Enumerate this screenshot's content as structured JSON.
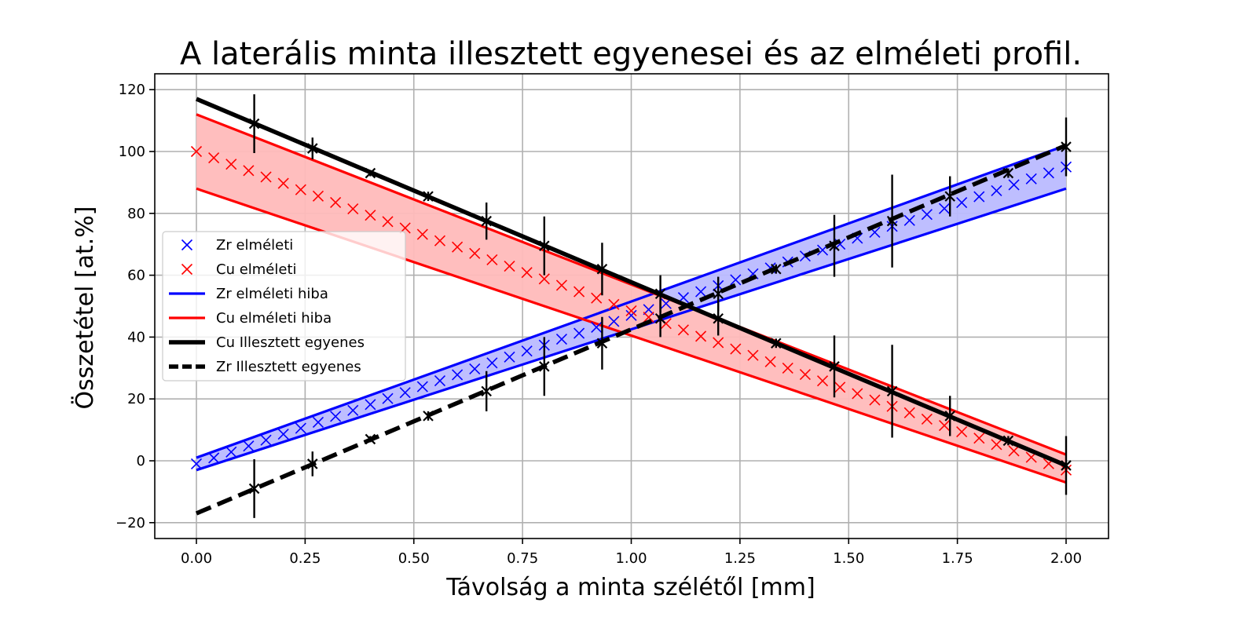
{
  "chart_data": {
    "type": "line",
    "title": "A laterális minta illesztett egyenesei és az elméleti profil.",
    "xlabel": "Távolság a minta szélétől [mm]",
    "ylabel": "Összetétel [at.%]",
    "xlim": [
      -0.1,
      2.1
    ],
    "ylim": [
      -25,
      125
    ],
    "xticks": [
      0.0,
      0.25,
      0.5,
      0.75,
      1.0,
      1.25,
      1.5,
      1.75,
      2.0
    ],
    "xtick_labels": [
      "0.00",
      "0.25",
      "0.50",
      "0.75",
      "1.00",
      "1.25",
      "1.50",
      "1.75",
      "2.00"
    ],
    "yticks": [
      -20,
      0,
      20,
      40,
      60,
      80,
      100,
      120
    ],
    "ytick_labels": [
      "−20",
      "0",
      "20",
      "40",
      "60",
      "80",
      "100",
      "120"
    ],
    "grid": true,
    "legend_position": "center-left",
    "theory": {
      "x_start": 0.0,
      "x_step": 0.04,
      "count": 51,
      "zr_start": -1,
      "zr_end": 95,
      "cu_start": 100,
      "cu_end": -3
    },
    "bands": [
      {
        "name": "Zr elméleti hiba",
        "color": "#0000ff",
        "fill": "#bbbbff",
        "upper": [
          [
            0.0,
            1
          ],
          [
            2.0,
            102
          ]
        ],
        "lower": [
          [
            0.0,
            -3
          ],
          [
            2.0,
            88
          ]
        ]
      },
      {
        "name": "Cu elméleti hiba",
        "color": "#ff0000",
        "fill": "#ffbbbb",
        "upper": [
          [
            0.0,
            112
          ],
          [
            2.0,
            2
          ]
        ],
        "lower": [
          [
            0.0,
            88
          ],
          [
            2.0,
            -7
          ]
        ]
      }
    ],
    "fit_lines": [
      {
        "name": "Cu Illesztett egyenes",
        "style": "solid",
        "color": "#000000",
        "points": [
          [
            0.0,
            117
          ],
          [
            2.0,
            -1.5
          ]
        ]
      },
      {
        "name": "Zr Illesztett egyenes",
        "style": "dashed",
        "color": "#000000",
        "points": [
          [
            0.0,
            -17
          ],
          [
            2.0,
            102
          ]
        ]
      }
    ],
    "measured_series": [
      {
        "group": "Cu",
        "points": [
          {
            "x": 0.133,
            "y": 109,
            "err": 9.5
          },
          {
            "x": 0.267,
            "y": 101,
            "err": 3.5
          },
          {
            "x": 0.4,
            "y": 93,
            "err": 1
          },
          {
            "x": 0.533,
            "y": 85.5,
            "err": 1.5
          },
          {
            "x": 0.667,
            "y": 77.5,
            "err": 6
          },
          {
            "x": 0.8,
            "y": 69.5,
            "err": 9.5
          },
          {
            "x": 0.933,
            "y": 62,
            "err": 8.5
          },
          {
            "x": 1.067,
            "y": 54,
            "err": 6
          },
          {
            "x": 1.2,
            "y": 46,
            "err": 5.5
          },
          {
            "x": 1.333,
            "y": 38,
            "err": 1.5
          },
          {
            "x": 1.467,
            "y": 30.5,
            "err": 10
          },
          {
            "x": 1.6,
            "y": 22.5,
            "err": 15
          },
          {
            "x": 1.733,
            "y": 14.5,
            "err": 6.5
          },
          {
            "x": 1.867,
            "y": 6.5,
            "err": 1.5
          },
          {
            "x": 2.0,
            "y": -1.5,
            "err": 9.5
          }
        ]
      },
      {
        "group": "Zr",
        "points": [
          {
            "x": 0.133,
            "y": -9,
            "err": 9.5
          },
          {
            "x": 0.267,
            "y": -1,
            "err": 4
          },
          {
            "x": 0.4,
            "y": 7,
            "err": 1
          },
          {
            "x": 0.533,
            "y": 14.5,
            "err": 1.5
          },
          {
            "x": 0.667,
            "y": 22.5,
            "err": 6.5
          },
          {
            "x": 0.8,
            "y": 30.5,
            "err": 9.5
          },
          {
            "x": 0.933,
            "y": 38,
            "err": 8.5
          },
          {
            "x": 1.067,
            "y": 46,
            "err": 6
          },
          {
            "x": 1.2,
            "y": 54,
            "err": 5.5
          },
          {
            "x": 1.333,
            "y": 62,
            "err": 1.5
          },
          {
            "x": 1.467,
            "y": 69.5,
            "err": 10
          },
          {
            "x": 1.6,
            "y": 77.5,
            "err": 15
          },
          {
            "x": 1.733,
            "y": 85.5,
            "err": 6.5
          },
          {
            "x": 1.867,
            "y": 93,
            "err": 1.5
          },
          {
            "x": 2.0,
            "y": 101.5,
            "err": 9.5
          }
        ]
      }
    ],
    "legend": [
      {
        "label": "Zr elméleti",
        "marker": "x",
        "color": "#0000ff"
      },
      {
        "label": "Cu elméleti",
        "marker": "x",
        "color": "#ff0000"
      },
      {
        "label": "Zr elméleti hiba",
        "marker": "line",
        "color": "#0000ff"
      },
      {
        "label": "Cu elméleti hiba",
        "marker": "line",
        "color": "#ff0000"
      },
      {
        "label": "Cu Illesztett egyenes",
        "marker": "thick-line",
        "color": "#000000"
      },
      {
        "label": "Zr Illesztett egyenes",
        "marker": "dashed-line",
        "color": "#000000"
      }
    ]
  }
}
